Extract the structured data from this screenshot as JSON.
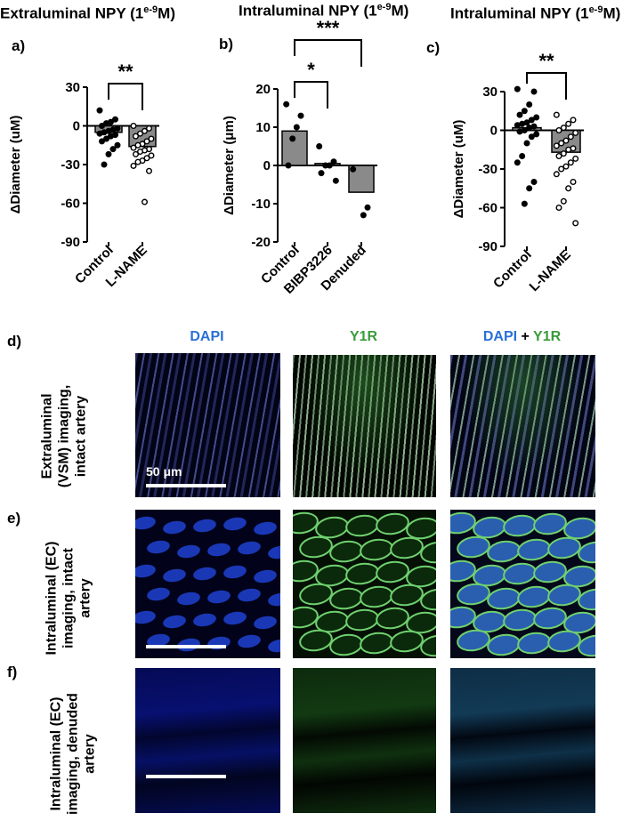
{
  "panels": {
    "a": {
      "label": "a)",
      "title_main": "Extraluminal NPY (1",
      "title_sup": "e-9",
      "title_end": "M)"
    },
    "b": {
      "label": "b)",
      "title_main": "Intraluminal NPY (1",
      "title_sup": "e-9",
      "title_end": "M)"
    },
    "c": {
      "label": "c)",
      "title_main": "Intraluminal NPY (1",
      "title_sup": "e-9",
      "title_end": "M)"
    }
  },
  "chart_data": [
    {
      "type": "bar",
      "panel": "a",
      "ylabel": "ΔDiameter (uM)",
      "ylim": [
        -90,
        30
      ],
      "yticks": [
        30,
        0,
        -30,
        -60,
        -90
      ],
      "categories": [
        "Control",
        "L-NAME"
      ],
      "values": [
        -5,
        -16
      ],
      "significance": [
        {
          "between": [
            "Control",
            "L-NAME"
          ],
          "stars": "**"
        }
      ],
      "points": [
        [
          12,
          5,
          3,
          2,
          0,
          -2,
          -3,
          -4,
          -5,
          -6,
          -7,
          -8,
          -10,
          -12,
          -15,
          -18,
          -22,
          -30
        ],
        [
          0,
          -2,
          -4,
          -6,
          -8,
          -10,
          -12,
          -14,
          -15,
          -17,
          -18,
          -19,
          -20,
          -22,
          -23,
          -25,
          -27,
          -28,
          -31,
          -35,
          -59
        ]
      ],
      "point_styles": [
        "filled",
        "open"
      ]
    },
    {
      "type": "bar",
      "panel": "b",
      "ylabel": "ΔDiameter (μm)",
      "ylim": [
        -20,
        20
      ],
      "yticks": [
        20,
        10,
        0,
        -10,
        -20
      ],
      "categories": [
        "Control",
        "BIBP3226",
        "Denuded"
      ],
      "values": [
        9,
        0.5,
        -7
      ],
      "significance": [
        {
          "between": [
            "Control",
            "BIBP3226"
          ],
          "stars": "*"
        },
        {
          "between": [
            "Control",
            "Denuded"
          ],
          "stars": "***"
        }
      ],
      "points": [
        [
          16,
          13,
          10,
          7,
          0
        ],
        [
          5,
          1,
          0,
          0,
          -2,
          -4
        ],
        [
          -1,
          -11,
          -13
        ]
      ],
      "point_styles": [
        "filled",
        "filled",
        "filled"
      ]
    },
    {
      "type": "bar",
      "panel": "c",
      "ylabel": "ΔDiameter (uM)",
      "ylim": [
        -90,
        30
      ],
      "yticks": [
        30,
        0,
        -30,
        -60,
        -90
      ],
      "categories": [
        "Control",
        "L-NAME"
      ],
      "values": [
        2,
        -17
      ],
      "significance": [
        {
          "between": [
            "Control",
            "L-NAME"
          ],
          "stars": "**"
        }
      ],
      "points": [
        [
          32,
          30,
          20,
          15,
          12,
          10,
          8,
          6,
          5,
          4,
          3,
          2,
          0,
          -1,
          -3,
          -5,
          -10,
          -20,
          -25,
          -40,
          -45,
          -57
        ],
        [
          12,
          8,
          5,
          2,
          0,
          -2,
          -5,
          -8,
          -10,
          -12,
          -14,
          -15,
          -18,
          -20,
          -22,
          -25,
          -28,
          -30,
          -34,
          -40,
          -45,
          -55,
          -60,
          -72
        ]
      ],
      "point_styles": [
        "filled",
        "open"
      ]
    }
  ],
  "microscopy": {
    "columns": [
      {
        "text": "DAPI",
        "color": "#2b6fd6"
      },
      {
        "text": "Y1R",
        "color": "#3a9b3a"
      }
    ],
    "merged": {
      "part1": "DAPI",
      "plus": " + ",
      "part2": "Y1R"
    },
    "rows": [
      {
        "label": "d)",
        "desc": "Extraluminal (VSM) imaging, intact artery",
        "scale_text": "50 μm"
      },
      {
        "label": "e)",
        "desc": "Intraluminal (EC) imaging, intact artery",
        "scale_text": ""
      },
      {
        "label": "f)",
        "desc": "Intraluminal (EC) imaging, denuded artery",
        "scale_text": ""
      }
    ]
  }
}
